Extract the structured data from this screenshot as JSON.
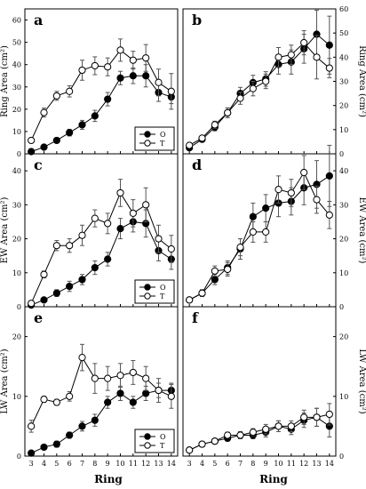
{
  "x_label": "Ring",
  "legend_labels": [
    "O",
    "T"
  ],
  "colors": {
    "O": "#000000",
    "T": "#ffffff",
    "axis": "#000000",
    "error": "#555555"
  },
  "chart_data": [
    {
      "type": "line",
      "panel": "a",
      "ylabel": "Ring Area (cm²)",
      "x": [
        3,
        4,
        5,
        6,
        7,
        8,
        9,
        10,
        11,
        12,
        13,
        14
      ],
      "xlim": [
        2.5,
        14.5
      ],
      "ylim": [
        0,
        65
      ],
      "yticks": [
        0,
        10,
        20,
        30,
        40,
        50,
        60
      ],
      "ytick_side": "left",
      "legend": true,
      "legend_position": "bottom-right",
      "series": [
        {
          "name": "O",
          "values": [
            1,
            3,
            6,
            9.5,
            13,
            17,
            24.5,
            34,
            35,
            35,
            27.5,
            25.5
          ],
          "errors": [
            0.5,
            0.7,
            1,
            1.5,
            2,
            2.5,
            3,
            3,
            3.5,
            5,
            4,
            3
          ]
        },
        {
          "name": "T",
          "values": [
            6,
            18.5,
            26,
            28,
            37.5,
            39.5,
            39,
            46.5,
            42,
            43,
            32,
            28
          ],
          "errors": [
            1,
            2,
            2,
            2.5,
            4.5,
            4,
            4,
            5,
            4,
            6,
            6,
            8
          ]
        }
      ]
    },
    {
      "type": "line",
      "panel": "b",
      "ylabel": "Ring Area (cm²)",
      "x": [
        3,
        4,
        5,
        6,
        7,
        8,
        9,
        10,
        11,
        12,
        13,
        14
      ],
      "xlim": [
        2.5,
        14.5
      ],
      "ylim": [
        0,
        60
      ],
      "yticks": [
        0,
        10,
        20,
        30,
        40,
        50,
        60
      ],
      "ytick_side": "right",
      "legend": false,
      "series": [
        {
          "name": "O",
          "values": [
            2.5,
            6,
            11,
            17,
            25,
            29.5,
            31,
            37,
            38,
            43.5,
            49.5,
            45
          ],
          "errors": [
            1,
            1,
            1.5,
            2,
            2.5,
            3,
            3,
            4,
            5,
            6,
            10,
            12
          ]
        },
        {
          "name": "T",
          "values": [
            3.5,
            6.5,
            12,
            17,
            23,
            27,
            30,
            40,
            41,
            46,
            40,
            35.5
          ],
          "errors": [
            1,
            1,
            1.5,
            2,
            2.5,
            3,
            3,
            4,
            4,
            5,
            9,
            4
          ]
        }
      ]
    },
    {
      "type": "line",
      "panel": "c",
      "ylabel": "EW Area (cm²)",
      "x": [
        3,
        4,
        5,
        6,
        7,
        8,
        9,
        10,
        11,
        12,
        13,
        14
      ],
      "xlim": [
        2.5,
        14.5
      ],
      "ylim": [
        0,
        45
      ],
      "yticks": [
        0,
        10,
        20,
        30,
        40
      ],
      "ytick_side": "left",
      "legend": true,
      "legend_position": "bottom-right",
      "series": [
        {
          "name": "O",
          "values": [
            0.5,
            2,
            4,
            6,
            8,
            11.5,
            14,
            23,
            25,
            24.5,
            16.5,
            14
          ],
          "errors": [
            0.5,
            0.5,
            1,
            1.5,
            1.5,
            2,
            2,
            3,
            3,
            4,
            3,
            3
          ]
        },
        {
          "name": "T",
          "values": [
            1,
            9.5,
            18,
            18,
            21,
            26,
            24.5,
            33.5,
            27.5,
            30,
            20,
            17
          ],
          "errors": [
            0.5,
            1,
            1.5,
            2,
            3,
            2.5,
            3,
            4,
            4,
            5,
            4,
            4
          ]
        }
      ]
    },
    {
      "type": "line",
      "panel": "d",
      "ylabel": "EW Area (cm²)",
      "x": [
        3,
        4,
        5,
        6,
        7,
        8,
        9,
        10,
        11,
        12,
        13,
        14
      ],
      "xlim": [
        2.5,
        14.5
      ],
      "ylim": [
        0,
        45
      ],
      "yticks": [
        0,
        10,
        20,
        30,
        40
      ],
      "ytick_side": "right",
      "legend": false,
      "series": [
        {
          "name": "O",
          "values": [
            2,
            4,
            8,
            11.5,
            17,
            26.5,
            29,
            30.5,
            31,
            35,
            36,
            38.5
          ],
          "errors": [
            0.5,
            1,
            1.5,
            2,
            3,
            4,
            4,
            4,
            4,
            5,
            7,
            9
          ]
        },
        {
          "name": "T",
          "values": [
            2,
            4,
            10.5,
            11,
            17.5,
            22,
            22,
            34.5,
            33.5,
            39.5,
            31.5,
            27
          ],
          "errors": [
            0.5,
            1,
            1.5,
            2,
            2.5,
            3,
            3,
            4,
            4,
            5,
            4,
            4
          ]
        }
      ]
    },
    {
      "type": "line",
      "panel": "e",
      "ylabel": "LW Area (cm²)",
      "x": [
        3,
        4,
        5,
        6,
        7,
        8,
        9,
        10,
        11,
        12,
        13,
        14
      ],
      "xlim": [
        2.5,
        14.5
      ],
      "ylim": [
        0,
        25
      ],
      "yticks": [
        0,
        10,
        20
      ],
      "ytick_side": "left",
      "legend": true,
      "legend_position": "bottom-right",
      "series": [
        {
          "name": "O",
          "values": [
            0.5,
            1.5,
            2,
            3.5,
            5,
            6,
            9,
            10.5,
            9,
            10.5,
            11,
            11
          ],
          "errors": [
            0.3,
            0.3,
            0.5,
            0.5,
            0.8,
            1,
            1,
            1.2,
            1,
            1.2,
            1.2,
            1.2
          ]
        },
        {
          "name": "T",
          "values": [
            5,
            9.5,
            9,
            10,
            16.5,
            13,
            13,
            13.5,
            14,
            13,
            11,
            10
          ],
          "errors": [
            1,
            0.5,
            0.5,
            0.8,
            2.2,
            2.5,
            2,
            2,
            2,
            2,
            2,
            2
          ]
        }
      ]
    },
    {
      "type": "line",
      "panel": "f",
      "ylabel": "LW Area (cm²)",
      "x": [
        3,
        4,
        5,
        6,
        7,
        8,
        9,
        10,
        11,
        12,
        13,
        14
      ],
      "xlim": [
        2.5,
        14.5
      ],
      "ylim": [
        0,
        25
      ],
      "yticks": [
        0,
        10,
        20
      ],
      "ytick_side": "right",
      "legend": false,
      "series": [
        {
          "name": "O",
          "values": [
            1,
            2,
            2.5,
            3,
            3.5,
            3.5,
            4,
            5,
            4.5,
            6,
            6.5,
            5
          ],
          "errors": [
            0.3,
            0.3,
            0.4,
            0.5,
            0.6,
            0.6,
            0.8,
            0.9,
            0.9,
            1.2,
            1.5,
            1.8
          ]
        },
        {
          "name": "T",
          "values": [
            1,
            2,
            2.5,
            3.5,
            3.5,
            4,
            4.5,
            5,
            5,
            6.5,
            6.5,
            7
          ],
          "errors": [
            0.3,
            0.3,
            0.4,
            0.5,
            0.6,
            0.6,
            0.8,
            0.9,
            0.9,
            1.2,
            1.5,
            1.8
          ]
        }
      ]
    }
  ]
}
